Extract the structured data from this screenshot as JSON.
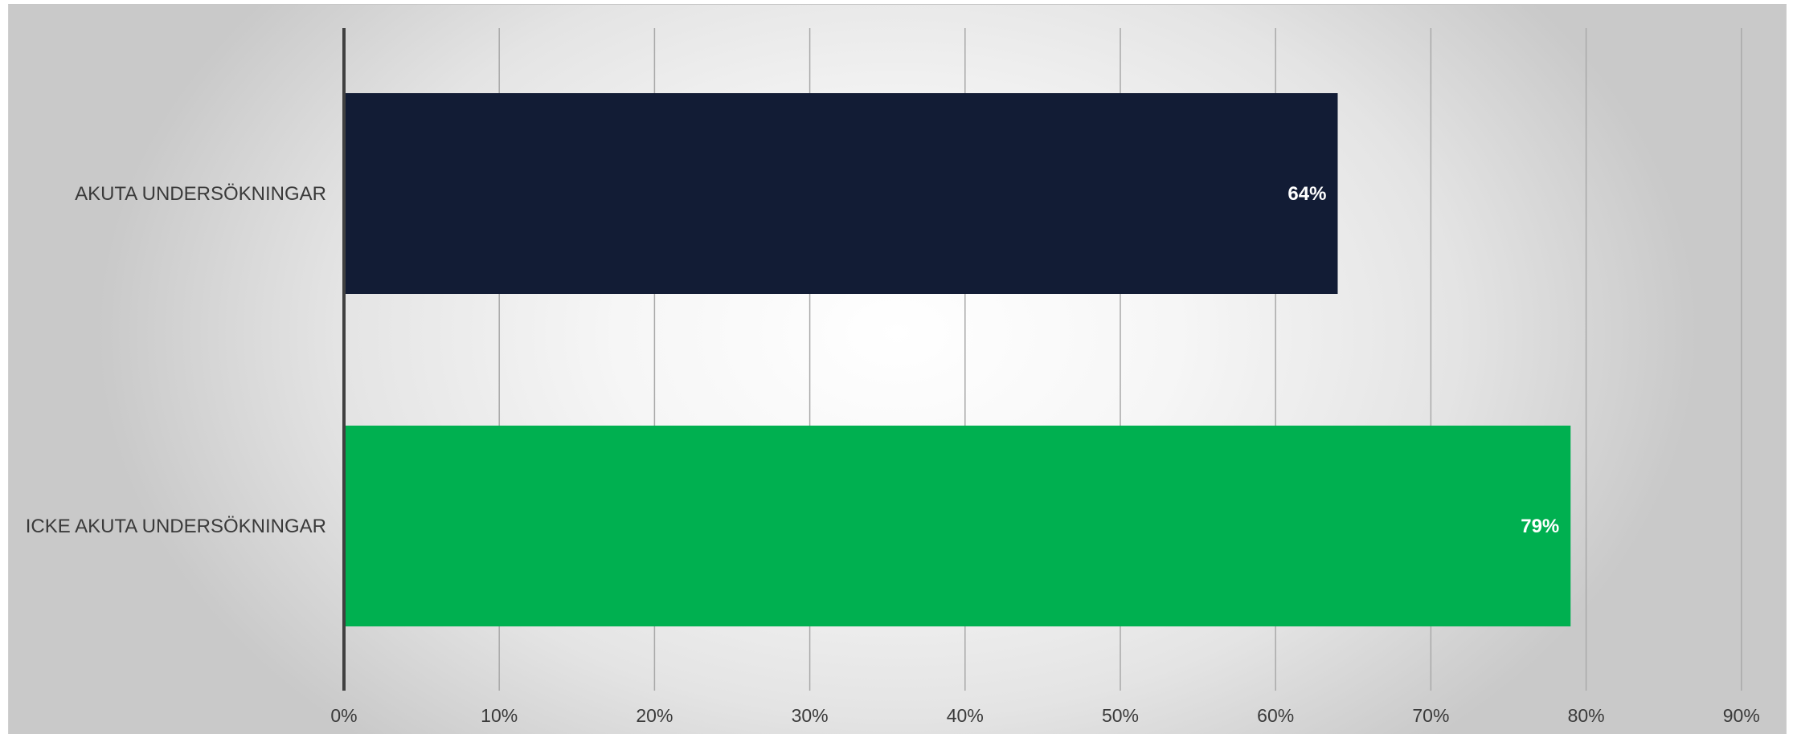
{
  "chart_data": {
    "type": "bar",
    "orientation": "horizontal",
    "categories": [
      "AKUTA UNDERSÖKNINGAR",
      "ICKE AKUTA UNDERSÖKNINGAR"
    ],
    "values": [
      64,
      79
    ],
    "value_labels": [
      "64%",
      "79%"
    ],
    "bar_colors": [
      "#121c35",
      "#00b050"
    ],
    "xlim": [
      0,
      90
    ],
    "x_ticks": [
      0,
      10,
      20,
      30,
      40,
      50,
      60,
      70,
      80,
      90
    ],
    "x_tick_labels": [
      "0%",
      "10%",
      "20%",
      "30%",
      "40%",
      "50%",
      "60%",
      "70%",
      "80%",
      "90%"
    ],
    "grid": "vertical",
    "legend": "none"
  }
}
